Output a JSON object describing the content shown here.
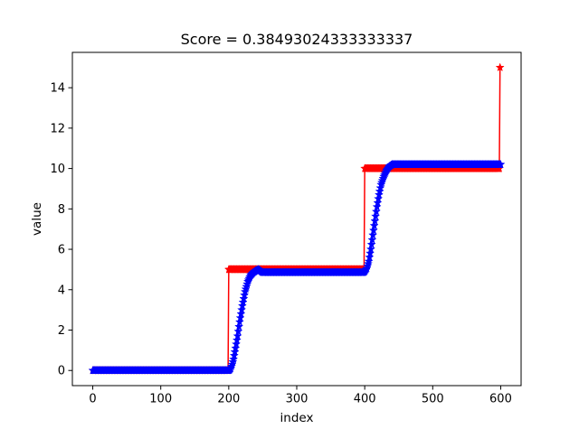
{
  "chart_data": {
    "type": "line",
    "title": "Score = 0.38493024333333337",
    "xlabel": "index",
    "ylabel": "value",
    "xlim": [
      -30,
      630
    ],
    "ylim": [
      -0.75,
      15.75
    ],
    "grid": false,
    "xticks": [
      0,
      100,
      200,
      300,
      400,
      500,
      600
    ],
    "yticks": [
      0,
      2,
      4,
      6,
      8,
      10,
      12,
      14
    ],
    "series": [
      {
        "color": "#ff0000",
        "marker": "star",
        "points": [
          [
            0,
            0
          ],
          [
            199,
            0
          ],
          [
            200,
            5
          ],
          [
            399,
            5
          ],
          [
            400,
            10
          ],
          [
            598,
            10
          ],
          [
            599,
            15
          ]
        ]
      },
      {
        "color": "#0000ff",
        "marker": "star",
        "points": [
          [
            0,
            0
          ],
          [
            200,
            0
          ],
          [
            201,
            0.02
          ],
          [
            203,
            0.1
          ],
          [
            205,
            0.3
          ],
          [
            207,
            0.55
          ],
          [
            210,
            1.1
          ],
          [
            213,
            1.7
          ],
          [
            216,
            2.4
          ],
          [
            220,
            3.2
          ],
          [
            224,
            3.9
          ],
          [
            228,
            4.4
          ],
          [
            232,
            4.7
          ],
          [
            236,
            4.85
          ],
          [
            240,
            4.95
          ],
          [
            244,
            5.0
          ],
          [
            250,
            4.85
          ],
          [
            300,
            4.85
          ],
          [
            398,
            4.85
          ],
          [
            400,
            4.9
          ],
          [
            403,
            5.05
          ],
          [
            406,
            5.4
          ],
          [
            409,
            6.0
          ],
          [
            412,
            6.7
          ],
          [
            415,
            7.4
          ],
          [
            418,
            8.1
          ],
          [
            421,
            8.7
          ],
          [
            424,
            9.2
          ],
          [
            428,
            9.6
          ],
          [
            432,
            9.9
          ],
          [
            436,
            10.1
          ],
          [
            440,
            10.2
          ],
          [
            450,
            10.2
          ],
          [
            500,
            10.2
          ],
          [
            600,
            10.2
          ]
        ]
      }
    ]
  }
}
